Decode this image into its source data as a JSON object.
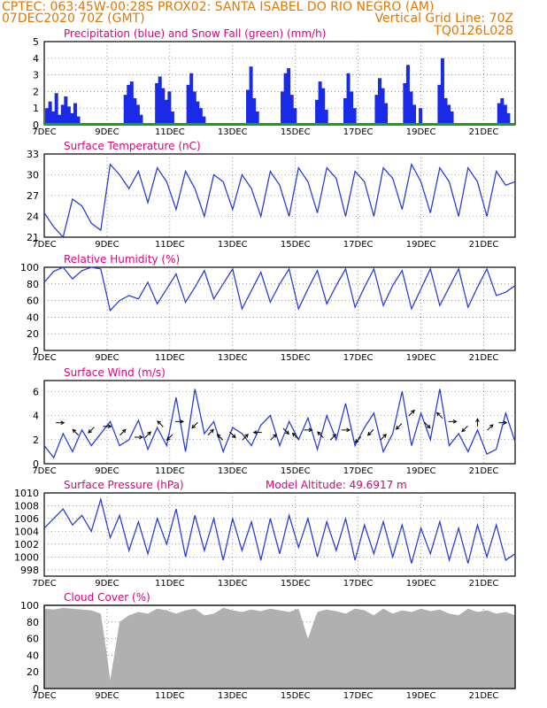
{
  "header": {
    "line1_left": "CPTEC:    063:45W-00:28S    PROX02: SANTA ISABEL DO RIO NEGRO (AM)",
    "line2_left": "07DEC2020 70Z (GMT)",
    "line2_right": "Vertical Grid Line: 70Z",
    "line3_right": "TQ0126L028"
  },
  "colors": {
    "header": "#e07800",
    "title": "#e0007a",
    "precip": "#1a2be8",
    "snow": "#1aa01a",
    "line": "#2a3fd8",
    "arrow": "#000000",
    "cloud": "#b0b0b0",
    "grid": "#555555"
  },
  "x_ticks": [
    "7DEC",
    "9DEC",
    "11DEC",
    "13DEC",
    "15DEC",
    "17DEC",
    "19DEC",
    "21DEC"
  ],
  "chart_data": [
    {
      "id": "precip",
      "type": "bar",
      "title": "Precipitation (blue) and Snow Fall (green) (mm/h)",
      "xlim": [
        0,
        15
      ],
      "ylim": [
        0,
        5
      ],
      "yticks": [
        0,
        1,
        2,
        3,
        4,
        5
      ],
      "grid": true,
      "series": [
        {
          "name": "Precipitation",
          "color": "#1a2be8",
          "x": [
            0.1,
            0.2,
            0.3,
            0.4,
            0.5,
            0.6,
            0.7,
            0.8,
            0.9,
            1.0,
            1.1,
            2.6,
            2.7,
            2.8,
            2.9,
            3.0,
            3.1,
            3.6,
            3.7,
            3.8,
            3.9,
            4.0,
            4.1,
            4.6,
            4.7,
            4.8,
            4.9,
            5.0,
            5.1,
            6.5,
            6.6,
            6.7,
            6.8,
            7.6,
            7.7,
            7.8,
            7.9,
            8.0,
            8.7,
            8.8,
            8.9,
            9.0,
            9.6,
            9.7,
            9.8,
            9.9,
            10.6,
            10.7,
            10.8,
            10.9,
            11.5,
            11.6,
            11.7,
            11.8,
            12.0,
            12.6,
            12.7,
            12.8,
            12.9,
            13.0,
            14.5,
            14.6,
            14.7,
            14.8
          ],
          "values": [
            1.0,
            1.4,
            0.8,
            1.9,
            0.6,
            1.2,
            1.7,
            1.1,
            0.7,
            1.3,
            0.5,
            1.8,
            2.4,
            2.6,
            1.6,
            1.2,
            0.6,
            2.5,
            2.9,
            2.2,
            1.5,
            2.0,
            0.8,
            2.4,
            3.1,
            2.0,
            1.4,
            1.0,
            0.5,
            2.1,
            3.5,
            1.6,
            0.8,
            2.0,
            3.1,
            3.4,
            1.8,
            1.0,
            1.5,
            2.6,
            2.2,
            0.9,
            1.6,
            3.1,
            2.0,
            1.0,
            1.8,
            2.8,
            2.2,
            1.3,
            2.5,
            3.6,
            2.0,
            1.2,
            1.0,
            2.4,
            4.0,
            1.6,
            1.2,
            0.8,
            1.3,
            1.6,
            1.2,
            0.7
          ]
        },
        {
          "name": "Snow Fall",
          "color": "#1aa01a",
          "x": [
            0,
            15
          ],
          "values": [
            0,
            0
          ]
        }
      ]
    },
    {
      "id": "temperature",
      "type": "line",
      "title": "Surface Temperature (nC)",
      "xlim": [
        0,
        15
      ],
      "ylim": [
        21,
        33
      ],
      "yticks": [
        21,
        24,
        27,
        30,
        33
      ],
      "grid": true,
      "x": [
        0.0,
        0.3,
        0.6,
        0.9,
        1.2,
        1.5,
        1.8,
        2.1,
        2.4,
        2.7,
        3.0,
        3.3,
        3.6,
        3.9,
        4.2,
        4.5,
        4.8,
        5.1,
        5.4,
        5.7,
        6.0,
        6.3,
        6.6,
        6.9,
        7.2,
        7.5,
        7.8,
        8.1,
        8.4,
        8.7,
        9.0,
        9.3,
        9.6,
        9.9,
        10.2,
        10.5,
        10.8,
        11.1,
        11.4,
        11.7,
        12.0,
        12.3,
        12.6,
        12.9,
        13.2,
        13.5,
        13.8,
        14.1,
        14.4,
        14.7,
        15.0
      ],
      "values": [
        24.5,
        22.5,
        21.0,
        26.5,
        25.5,
        23.0,
        22.0,
        31.5,
        30.0,
        28.0,
        30.5,
        26.0,
        31.0,
        29.0,
        25.0,
        30.5,
        28.0,
        24.0,
        30.0,
        29.0,
        25.0,
        30.0,
        28.0,
        24.0,
        30.5,
        28.5,
        24.0,
        31.0,
        29.0,
        24.5,
        31.0,
        29.5,
        24.0,
        30.5,
        29.0,
        24.0,
        31.0,
        29.5,
        25.0,
        31.5,
        29.0,
        24.5,
        31.0,
        29.0,
        24.0,
        31.0,
        29.0,
        24.0,
        30.5,
        28.5,
        29.0
      ]
    },
    {
      "id": "humidity",
      "type": "line",
      "title": "Relative Humidity (%)",
      "xlim": [
        0,
        15
      ],
      "ylim": [
        0,
        100
      ],
      "yticks": [
        0,
        20,
        40,
        60,
        80,
        100
      ],
      "grid": true,
      "x": [
        0.0,
        0.3,
        0.6,
        0.9,
        1.2,
        1.5,
        1.8,
        2.1,
        2.4,
        2.7,
        3.0,
        3.3,
        3.6,
        3.9,
        4.2,
        4.5,
        4.8,
        5.1,
        5.4,
        5.7,
        6.0,
        6.3,
        6.6,
        6.9,
        7.2,
        7.5,
        7.8,
        8.1,
        8.4,
        8.7,
        9.0,
        9.3,
        9.6,
        9.9,
        10.2,
        10.5,
        10.8,
        11.1,
        11.4,
        11.7,
        12.0,
        12.3,
        12.6,
        12.9,
        13.2,
        13.5,
        13.8,
        14.1,
        14.4,
        14.7,
        15.0
      ],
      "values": [
        82,
        95,
        100,
        86,
        96,
        100,
        98,
        48,
        60,
        66,
        62,
        82,
        56,
        74,
        92,
        58,
        76,
        96,
        62,
        80,
        98,
        50,
        72,
        94,
        58,
        80,
        98,
        50,
        74,
        96,
        56,
        78,
        98,
        52,
        76,
        98,
        54,
        78,
        96,
        50,
        74,
        98,
        54,
        76,
        98,
        52,
        76,
        98,
        66,
        70,
        78
      ]
    },
    {
      "id": "wind",
      "type": "line",
      "title": "Surface Wind (m/s)",
      "xlim": [
        0,
        15
      ],
      "ylim": [
        0,
        6.9
      ],
      "yticks": [
        0,
        2,
        4,
        6
      ],
      "grid": true,
      "x": [
        0.0,
        0.3,
        0.6,
        0.9,
        1.2,
        1.5,
        1.8,
        2.1,
        2.4,
        2.7,
        3.0,
        3.3,
        3.6,
        3.9,
        4.2,
        4.5,
        4.8,
        5.1,
        5.4,
        5.7,
        6.0,
        6.3,
        6.6,
        6.9,
        7.2,
        7.5,
        7.8,
        8.1,
        8.4,
        8.7,
        9.0,
        9.3,
        9.6,
        9.9,
        10.2,
        10.5,
        10.8,
        11.1,
        11.4,
        11.7,
        12.0,
        12.3,
        12.6,
        12.9,
        13.2,
        13.5,
        13.8,
        14.1,
        14.4,
        14.7,
        15.0
      ],
      "values": [
        1.5,
        0.5,
        2.5,
        1.0,
        2.8,
        1.5,
        2.5,
        3.5,
        1.5,
        2.0,
        3.6,
        1.2,
        3.0,
        1.5,
        5.5,
        1.0,
        6.2,
        2.5,
        3.5,
        1.0,
        3.0,
        2.5,
        1.5,
        3.2,
        4.0,
        1.5,
        3.5,
        2.0,
        3.8,
        1.2,
        4.0,
        2.0,
        5.0,
        1.5,
        3.0,
        4.2,
        1.0,
        2.5,
        6.0,
        1.5,
        4.2,
        2.0,
        6.2,
        1.5,
        2.5,
        1.0,
        2.8,
        0.8,
        1.2,
        4.2,
        1.8
      ],
      "arrows": {
        "x": [
          0.5,
          1.0,
          1.5,
          2.0,
          2.5,
          3.0,
          3.3,
          3.7,
          4.0,
          4.3,
          4.8,
          5.3,
          5.6,
          6.0,
          6.4,
          6.8,
          7.3,
          7.7,
          8.0,
          8.4,
          8.8,
          9.2,
          9.6,
          10.0,
          10.4,
          10.8,
          11.3,
          11.7,
          12.2,
          12.6,
          13.0,
          13.4,
          13.8,
          14.2,
          14.6
        ],
        "y": [
          3.4,
          2.6,
          2.8,
          3.1,
          2.6,
          2.2,
          2.4,
          3.3,
          2.2,
          3.5,
          3.2,
          2.6,
          2.2,
          2.4,
          2.2,
          2.6,
          2.2,
          2.7,
          2.3,
          2.8,
          2.4,
          2.2,
          2.8,
          2.0,
          2.6,
          2.2,
          3.1,
          4.2,
          3.2,
          4.0,
          3.5,
          2.9,
          3.4,
          3.0,
          3.4
        ],
        "u": [
          1,
          -1,
          -1,
          1,
          1,
          1,
          1,
          -1,
          -1,
          1,
          -1,
          1,
          -1,
          1,
          1,
          -1,
          1,
          1,
          -1,
          1,
          -1,
          1,
          1,
          -1,
          -1,
          1,
          -1,
          1,
          1,
          -1,
          1,
          -1,
          0,
          1,
          1
        ],
        "v": [
          0,
          1,
          -1,
          0,
          1,
          0,
          1,
          1,
          -1,
          0,
          -1,
          1,
          1,
          -1,
          1,
          0,
          1,
          -1,
          1,
          0,
          1,
          1,
          0,
          -1,
          -1,
          1,
          -1,
          1,
          -1,
          1,
          0,
          -1,
          1,
          1,
          0
        ]
      }
    },
    {
      "id": "pressure",
      "type": "line",
      "title": "Surface Pressure (hPa)",
      "annotation": "Model Altitude: 49.6917 m",
      "xlim": [
        0,
        15
      ],
      "ylim": [
        997,
        1010
      ],
      "yticks": [
        998,
        1000,
        1002,
        1004,
        1006,
        1008,
        1010
      ],
      "grid": true,
      "x": [
        0.0,
        0.3,
        0.6,
        0.9,
        1.2,
        1.5,
        1.8,
        2.1,
        2.4,
        2.7,
        3.0,
        3.3,
        3.6,
        3.9,
        4.2,
        4.5,
        4.8,
        5.1,
        5.4,
        5.7,
        6.0,
        6.3,
        6.6,
        6.9,
        7.2,
        7.5,
        7.8,
        8.1,
        8.4,
        8.7,
        9.0,
        9.3,
        9.6,
        9.9,
        10.2,
        10.5,
        10.8,
        11.1,
        11.4,
        11.7,
        12.0,
        12.3,
        12.6,
        12.9,
        13.2,
        13.5,
        13.8,
        14.1,
        14.4,
        14.7,
        15.0
      ],
      "values": [
        1004.5,
        1006.0,
        1007.5,
        1005.0,
        1006.5,
        1004.0,
        1009.0,
        1003.0,
        1006.5,
        1001.0,
        1005.5,
        1000.5,
        1006.0,
        1002.0,
        1007.5,
        1000.0,
        1006.5,
        1001.0,
        1006.0,
        999.5,
        1006.0,
        1001.0,
        1005.5,
        999.5,
        1006.0,
        1000.5,
        1006.5,
        1001.5,
        1006.0,
        1000.0,
        1005.5,
        1001.0,
        1006.0,
        999.5,
        1005.0,
        1000.5,
        1005.5,
        1000.0,
        1005.0,
        999.0,
        1004.5,
        1000.5,
        1005.5,
        999.5,
        1004.5,
        999.0,
        1005.0,
        1000.0,
        1005.0,
        999.5,
        1000.5
      ]
    },
    {
      "id": "cloud",
      "type": "area",
      "title": "Cloud Cover (%)",
      "xlim": [
        0,
        15
      ],
      "ylim": [
        0,
        100
      ],
      "yticks": [
        0,
        20,
        40,
        60,
        80,
        100
      ],
      "grid": true,
      "x": [
        0.0,
        0.3,
        0.6,
        0.9,
        1.2,
        1.5,
        1.8,
        2.0,
        2.1,
        2.4,
        2.7,
        3.0,
        3.3,
        3.6,
        3.9,
        4.2,
        4.5,
        4.8,
        5.1,
        5.4,
        5.7,
        6.0,
        6.3,
        6.6,
        6.9,
        7.2,
        7.5,
        7.8,
        8.1,
        8.4,
        8.7,
        9.0,
        9.3,
        9.6,
        9.9,
        10.2,
        10.5,
        10.8,
        11.1,
        11.4,
        11.7,
        12.0,
        12.3,
        12.6,
        12.9,
        13.2,
        13.5,
        13.8,
        14.1,
        14.4,
        14.7,
        15.0
      ],
      "values": [
        96,
        95,
        97,
        96,
        95,
        94,
        90,
        40,
        10,
        80,
        88,
        92,
        90,
        96,
        94,
        90,
        94,
        96,
        88,
        90,
        97,
        94,
        92,
        95,
        93,
        96,
        94,
        92,
        96,
        60,
        92,
        95,
        93,
        90,
        96,
        94,
        88,
        96,
        90,
        94,
        92,
        96,
        93,
        95,
        90,
        88,
        96,
        92,
        94,
        90,
        92,
        88
      ]
    }
  ]
}
